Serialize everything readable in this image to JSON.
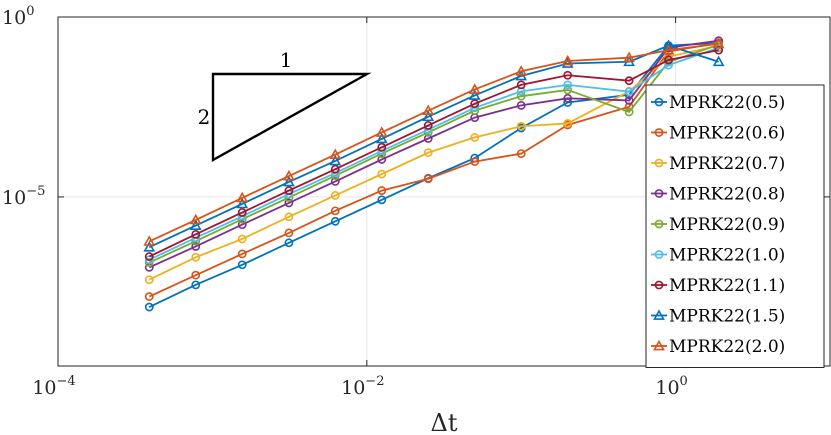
{
  "chart_data": {
    "type": "line",
    "xscale": "log",
    "yscale": "log",
    "xlim": [
      0.0001,
      10
    ],
    "ylim": [
      2e-10,
      1
    ],
    "xlabel": "Δt",
    "ylabel": "",
    "title": "",
    "grid": true,
    "legend_position": "right",
    "x_ticks": [
      {
        "value": 0.0001,
        "label": "10",
        "exp": "−4"
      },
      {
        "value": 0.01,
        "label": "10",
        "exp": "−2"
      },
      {
        "value": 1,
        "label": "10",
        "exp": "0"
      }
    ],
    "y_ticks": [
      {
        "value": 1e-05,
        "label": "10",
        "exp": "−5"
      },
      {
        "value": 1,
        "label": "10",
        "exp": "0"
      }
    ],
    "x": [
      0.00039,
      0.00078,
      0.00156,
      0.00313,
      0.00625,
      0.0125,
      0.025,
      0.05,
      0.1,
      0.2,
      0.5,
      0.9,
      1.9
    ],
    "series": [
      {
        "name": "MPRK22(0.5)",
        "color": "#0072BD",
        "marker": "circle",
        "values": [
          8.7e-09,
          3.6e-08,
          1.3e-07,
          5.3e-07,
          2.1e-06,
          8.3e-06,
          3.3e-05,
          0.00012,
          0.00082,
          0.0042,
          0.0069,
          0.16,
          0.19
        ]
      },
      {
        "name": "MPRK22(0.6)",
        "color": "#D95319",
        "marker": "circle",
        "values": [
          1.7e-08,
          6.7e-08,
          2.6e-07,
          1e-06,
          4.1e-06,
          1.5e-05,
          3.2e-05,
          9.6e-05,
          0.00016,
          0.001,
          0.0032,
          0.11,
          0.19
        ]
      },
      {
        "name": "MPRK22(0.7)",
        "color": "#EDB120",
        "marker": "circle",
        "values": [
          5e-08,
          2.1e-07,
          6.8e-07,
          2.8e-06,
          1.1e-05,
          4.3e-05,
          0.00017,
          0.00045,
          0.00092,
          0.0011,
          0.0086,
          0.079,
          0.16
        ]
      },
      {
        "name": "MPRK22(0.8)",
        "color": "#7E2F8E",
        "marker": "circle",
        "values": [
          1.1e-07,
          4.2e-07,
          1.7e-06,
          6.8e-06,
          2.7e-05,
          0.00011,
          0.00042,
          0.0016,
          0.0035,
          0.0055,
          0.0048,
          0.14,
          0.22
        ]
      },
      {
        "name": "MPRK22(0.9)",
        "color": "#77AC30",
        "marker": "circle",
        "values": [
          1.5e-07,
          5.9e-07,
          2.4e-06,
          9.6e-06,
          3.9e-05,
          0.00016,
          0.00062,
          0.0025,
          0.0063,
          0.0094,
          0.0023,
          0.056,
          0.17
        ]
      },
      {
        "name": "MPRK22(1.0)",
        "color": "#4DBEEE",
        "marker": "circle",
        "values": [
          1.8e-07,
          7.3e-07,
          2.9e-06,
          1.2e-05,
          4.6e-05,
          0.00019,
          0.00074,
          0.003,
          0.0086,
          0.013,
          0.0084,
          0.046,
          0.14
        ]
      },
      {
        "name": "MPRK22(1.1)",
        "color": "#A2142F",
        "marker": "circle",
        "values": [
          2.2e-07,
          9.1e-07,
          3.7e-06,
          1.5e-05,
          5.9e-05,
          0.00024,
          0.00097,
          0.0039,
          0.013,
          0.024,
          0.017,
          0.064,
          0.12
        ]
      },
      {
        "name": "MPRK22(1.5)",
        "color": "#0072BD",
        "marker": "triangle",
        "values": [
          4e-07,
          1.6e-06,
          6.4e-06,
          2.6e-05,
          0.0001,
          0.00041,
          0.0017,
          0.0066,
          0.023,
          0.051,
          0.057,
          0.16,
          0.057
        ]
      },
      {
        "name": "MPRK22(2.0)",
        "color": "#D95319",
        "marker": "triangle",
        "values": [
          5.8e-07,
          2.3e-06,
          9.4e-06,
          3.8e-05,
          0.00015,
          0.00062,
          0.0025,
          0.0097,
          0.031,
          0.06,
          0.074,
          0.12,
          0.18
        ]
      }
    ],
    "annotation": {
      "type": "slope-triangle",
      "top_label": "1",
      "side_label": "2"
    }
  }
}
